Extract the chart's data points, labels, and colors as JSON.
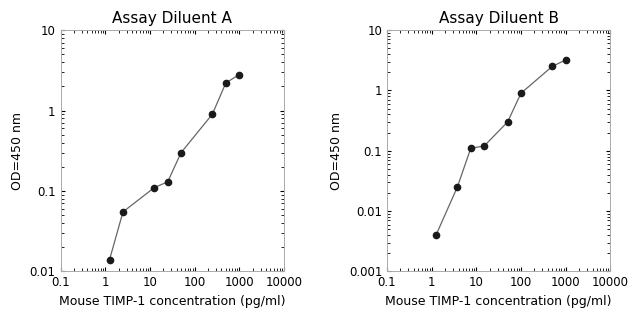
{
  "panel_A": {
    "title": "Assay Diluent A",
    "x": [
      1.25,
      2.5,
      12.5,
      25,
      50,
      250,
      500,
      1000
    ],
    "y": [
      0.014,
      0.055,
      0.11,
      0.13,
      0.3,
      0.9,
      2.2,
      2.8
    ],
    "xlim": [
      0.1,
      10000
    ],
    "ylim": [
      0.01,
      10
    ],
    "xlabel": "Mouse TIMP-1 concentration (pg/ml)",
    "ylabel": "OD=450 nm",
    "xticks": [
      0.1,
      1,
      10,
      100,
      1000,
      10000
    ],
    "xticklabels": [
      "0.1",
      "1",
      "10",
      "100",
      "1000",
      "10000"
    ],
    "yticks": [
      0.01,
      0.1,
      1,
      10
    ],
    "yticklabels": [
      "0.01",
      "0.1",
      "1",
      "10"
    ]
  },
  "panel_B": {
    "title": "Assay Diluent B",
    "x": [
      1.25,
      3.75,
      7.5,
      15,
      50,
      100,
      500,
      1000
    ],
    "y": [
      0.004,
      0.025,
      0.11,
      0.12,
      0.3,
      0.9,
      2.5,
      3.2
    ],
    "xlim": [
      0.1,
      10000
    ],
    "ylim": [
      0.001,
      10
    ],
    "xlabel": "Mouse TIMP-1 concentration (pg/ml)",
    "ylabel": "OD=450 nm",
    "xticks": [
      0.1,
      1,
      10,
      100,
      1000,
      10000
    ],
    "xticklabels": [
      "0.1",
      "1",
      "10",
      "100",
      "1000",
      "10000"
    ],
    "yticks": [
      0.001,
      0.01,
      0.1,
      1,
      10
    ],
    "yticklabels": [
      "0.001",
      "0.01",
      "0.1",
      "1",
      "10"
    ]
  },
  "line_color": "#666666",
  "marker_color": "#1a1a1a",
  "bg_color": "#ffffff",
  "title_fontsize": 11,
  "label_fontsize": 9,
  "tick_fontsize": 8.5
}
